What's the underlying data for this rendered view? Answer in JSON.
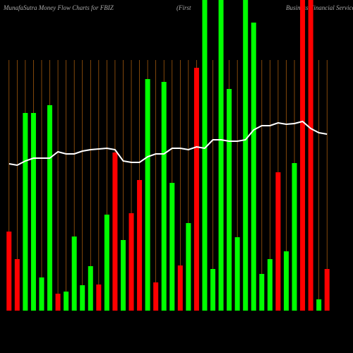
{
  "chart_data": {
    "type": "bar",
    "title": "MunafaSutra  Money Flow  Charts for FBIZ",
    "company": [
      "(First",
      "Business Financial Services"
    ],
    "categories": [
      null,
      null,
      null,
      null,
      null,
      null,
      null,
      null,
      null,
      null,
      null,
      null,
      null,
      null,
      null,
      null,
      null,
      null,
      null,
      null,
      null,
      null,
      null,
      null,
      null,
      null,
      null,
      null,
      null,
      null,
      null,
      null,
      null,
      null,
      null,
      null,
      null,
      null,
      null,
      null
    ],
    "values": [
      112,
      73,
      280,
      280,
      47,
      291,
      24,
      27,
      105,
      36,
      63,
      37,
      136,
      224,
      100,
      138,
      185,
      328,
      40,
      324,
      181,
      64,
      124,
      344,
      440,
      59,
      440,
      314,
      104,
      440,
      408,
      52,
      73,
      196,
      84,
      209,
      440,
      440,
      16,
      59
    ],
    "colors": [
      "#ff0000",
      "#ff0000",
      "#00ff00",
      "#00ff00",
      "#00ff00",
      "#00ff00",
      "#ff0000",
      "#00ff00",
      "#00ff00",
      "#00ff00",
      "#00ff00",
      "#ff0000",
      "#00ff00",
      "#ff0000",
      "#00ff00",
      "#ff0000",
      "#ff0000",
      "#00ff00",
      "#ff0000",
      "#00ff00",
      "#00ff00",
      "#ff0000",
      "#00ff00",
      "#ff0000",
      "#00ff00",
      "#00ff00",
      "#00ff00",
      "#00ff00",
      "#00ff00",
      "#00ff00",
      "#00ff00",
      "#00ff00",
      "#00ff00",
      "#ff0000",
      "#00ff00",
      "#00ff00",
      "#ff0000",
      "#ff0000",
      "#00ff00",
      "#ff0000"
    ],
    "line_values": [
      208,
      206,
      212,
      216,
      216,
      216,
      225,
      222,
      222,
      226,
      228,
      229,
      230,
      228,
      212,
      210,
      210,
      218,
      222,
      222,
      230,
      230,
      228,
      232,
      230,
      242,
      242,
      240,
      240,
      242,
      256,
      262,
      262,
      266,
      264,
      265,
      268,
      258,
      252,
      250
    ],
    "line_color": "#ffffff",
    "grid_color": "#b8650f",
    "ylim": [
      0,
      440
    ]
  }
}
